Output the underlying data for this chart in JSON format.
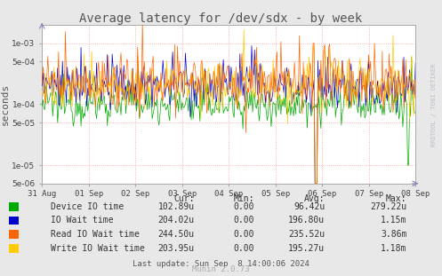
{
  "title": "Average latency for /dev/sdx - by week",
  "ylabel": "seconds",
  "background_color": "#e8e8e8",
  "plot_bg_color": "#ffffff",
  "grid_color": "#ff9999",
  "xtick_labels": [
    "31 Aug",
    "01 Sep",
    "02 Sep",
    "03 Sep",
    "04 Sep",
    "05 Sep",
    "06 Sep",
    "07 Sep",
    "08 Sep"
  ],
  "legend": [
    {
      "label": "Device IO time",
      "color": "#00aa00",
      "cur": "102.89u",
      "min": "0.00",
      "avg": "96.42u",
      "max": "279.22u"
    },
    {
      "label": "IO Wait time",
      "color": "#0000cc",
      "cur": "204.02u",
      "min": "0.00",
      "avg": "196.80u",
      "max": "1.15m"
    },
    {
      "label": "Read IO Wait time",
      "color": "#ff6600",
      "cur": "244.50u",
      "min": "0.00",
      "avg": "235.52u",
      "max": "3.86m"
    },
    {
      "label": "Write IO Wait time",
      "color": "#ffcc00",
      "cur": "203.95u",
      "min": "0.00",
      "avg": "195.27u",
      "max": "1.18m"
    }
  ],
  "footer": "Last update: Sun Sep  8 14:00:06 2024",
  "munin_version": "Munin 2.0.73",
  "rrdtool_label": "RRDTOOL / TOBI OETIKER",
  "title_color": "#555555",
  "axis_color": "#aaaaaa",
  "yticks": [
    5e-06,
    1e-05,
    5e-05,
    0.0001,
    0.0005,
    0.001
  ],
  "ytick_labels": [
    "5e-06",
    "1e-05",
    "5e-05",
    "1e-04",
    "5e-04",
    "1e-03"
  ],
  "ymin": 5e-06,
  "ymax": 0.002
}
